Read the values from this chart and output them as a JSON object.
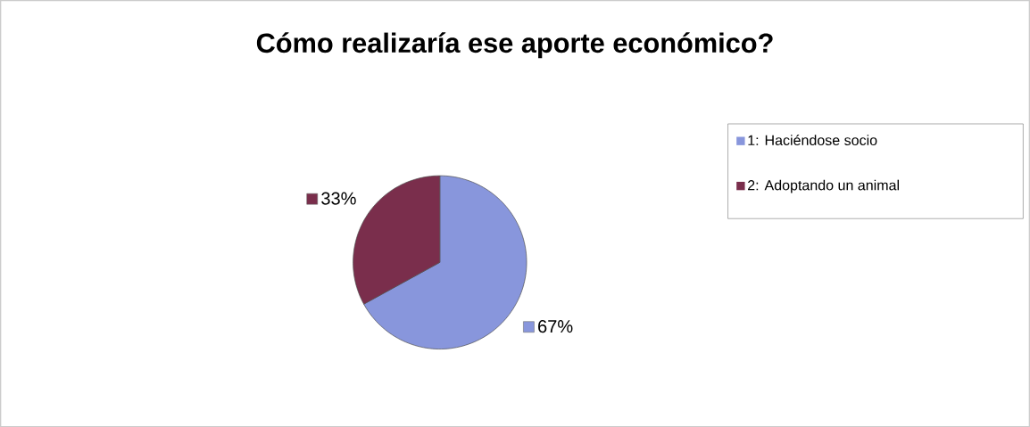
{
  "chart_data": {
    "type": "pie",
    "title": "Cómo realizaría ese aporte económico?",
    "categories": [
      "1: Haciéndose socio",
      "2: Adoptando un animal"
    ],
    "values": [
      67,
      33
    ],
    "colors": [
      "#8896dc",
      "#7a2e4c"
    ],
    "value_labels": [
      "67%",
      "33%"
    ],
    "legend": "right"
  }
}
